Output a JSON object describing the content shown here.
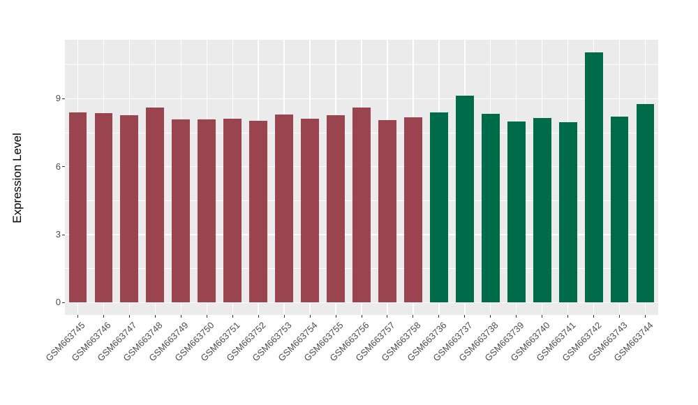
{
  "figure": {
    "background": "#FFFFFF"
  },
  "chart_data": {
    "type": "bar",
    "title": "",
    "xlabel": "",
    "ylabel": "Expression Level",
    "legend": "none",
    "grid": "on",
    "categories": [
      "GSM663745",
      "GSM663746",
      "GSM663747",
      "GSM663748",
      "GSM663749",
      "GSM663750",
      "GSM663751",
      "GSM663752",
      "GSM663753",
      "GSM663754",
      "GSM663755",
      "GSM663756",
      "GSM663757",
      "GSM663758",
      "GSM663736",
      "GSM663737",
      "GSM663738",
      "GSM663739",
      "GSM663740",
      "GSM663741",
      "GSM663742",
      "GSM663743",
      "GSM663744"
    ],
    "values": [
      8.39,
      8.35,
      8.27,
      8.61,
      8.09,
      8.09,
      8.13,
      8.04,
      8.29,
      8.11,
      8.26,
      8.62,
      8.07,
      8.19,
      8.4,
      9.12,
      8.34,
      8.01,
      8.16,
      7.95,
      11.06,
      8.21,
      8.77
    ],
    "groups": [
      "group1",
      "group1",
      "group1",
      "group1",
      "group1",
      "group1",
      "group1",
      "group1",
      "group1",
      "group1",
      "group1",
      "group1",
      "group1",
      "group1",
      "group2",
      "group2",
      "group2",
      "group2",
      "group2",
      "group2",
      "group2",
      "group2",
      "group2"
    ],
    "group_colors": {
      "group1": "#9A4450",
      "group2": "#006B48"
    },
    "yticks": [
      0,
      3,
      6,
      9
    ],
    "ytick_labels": [
      "0",
      "3",
      "6",
      "9"
    ],
    "yticks_minor": [
      1.5,
      4.5,
      7.5,
      10.5
    ],
    "ylim": [
      -0.54,
      11.6
    ],
    "bar_width_fraction": 0.7,
    "panel_background": "#EBEBEB",
    "gridline_color": "#FFFFFF",
    "tick_mark_color": "#333333",
    "axis_text_color": "#4D4D4D",
    "axis_title_color": "#000000"
  }
}
